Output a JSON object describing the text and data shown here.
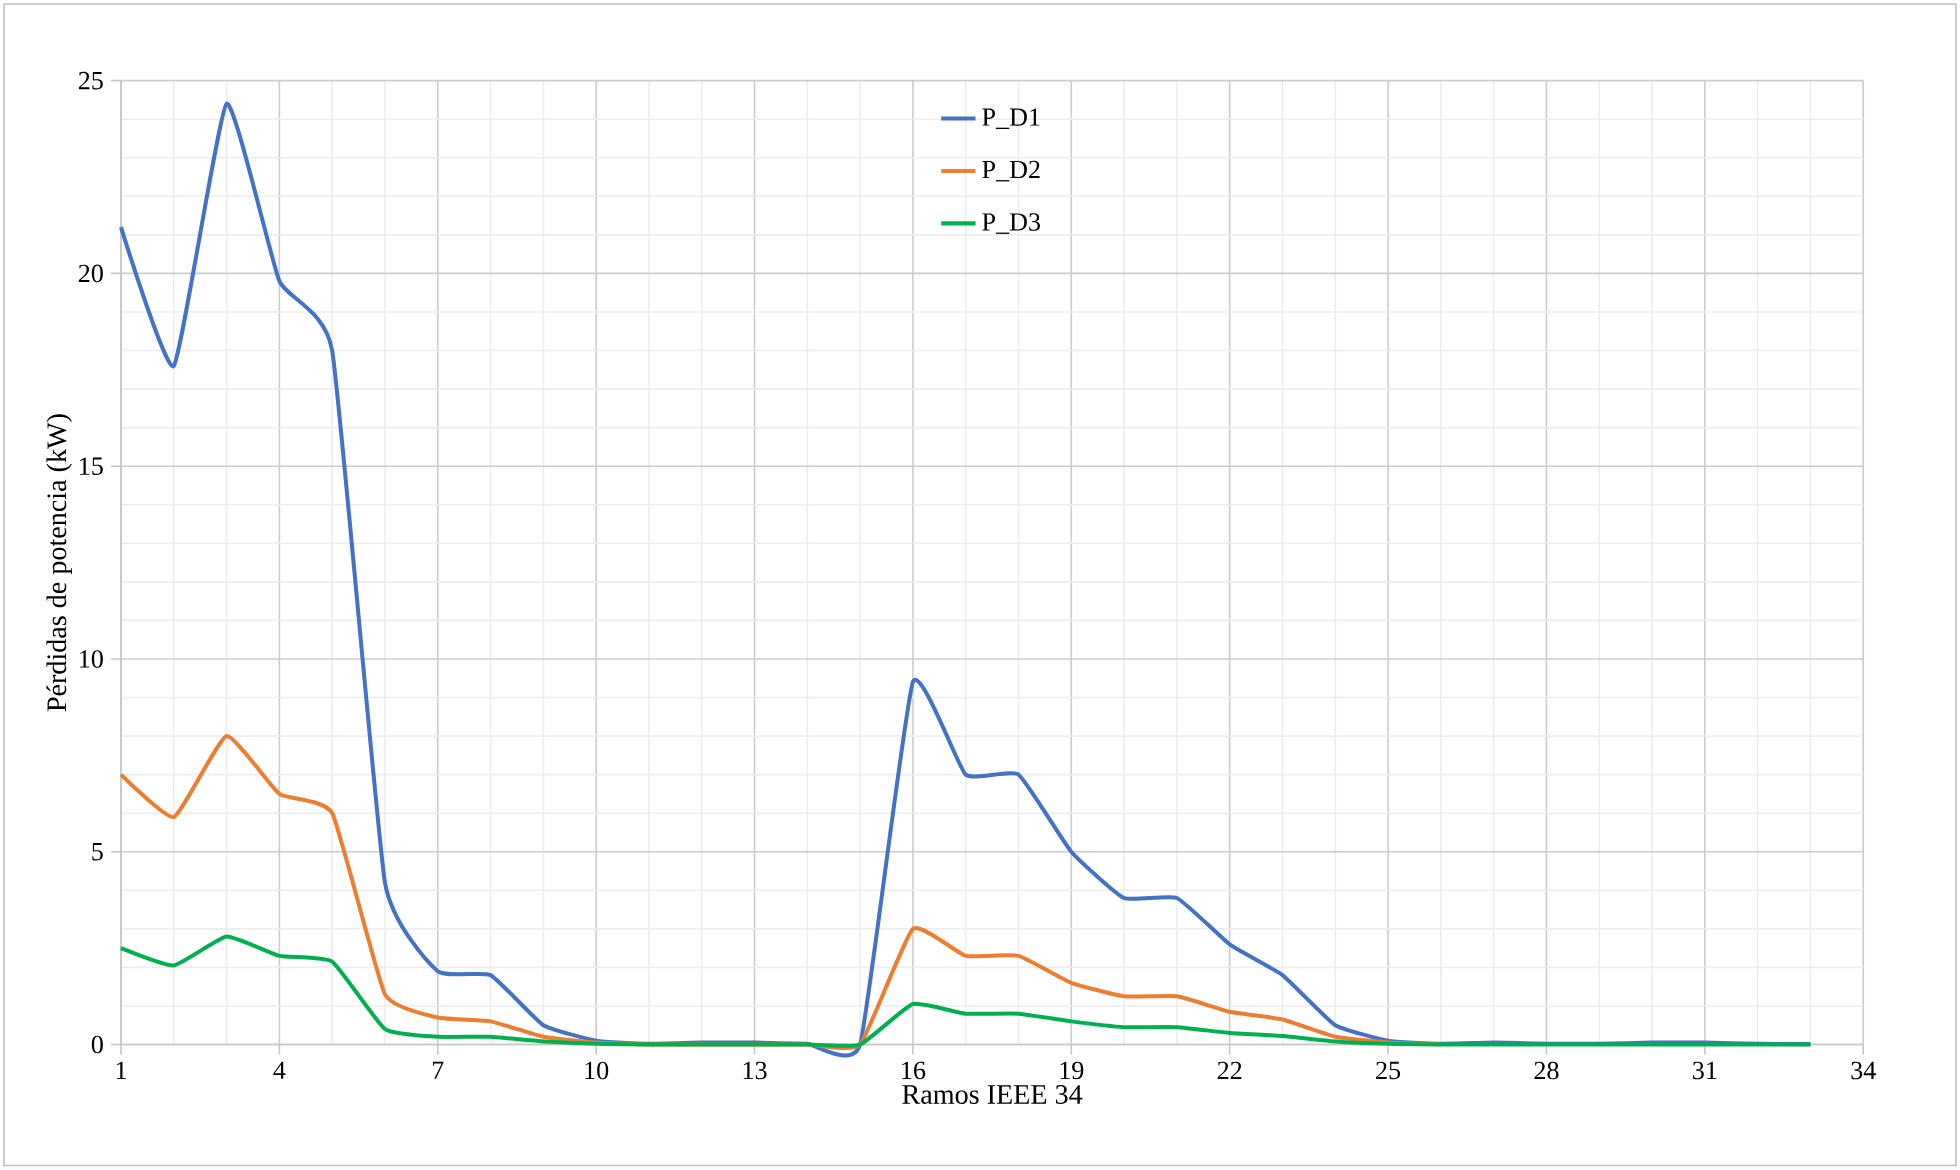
{
  "chart_data": {
    "type": "line",
    "xlabel": "Ramos IEEE 34",
    "ylabel": "Pérdidas de potencia (kW)",
    "x": [
      1,
      2,
      3,
      4,
      5,
      6,
      7,
      8,
      9,
      10,
      11,
      12,
      13,
      14,
      15,
      16,
      17,
      18,
      19,
      20,
      21,
      22,
      23,
      24,
      25,
      26,
      27,
      28,
      29,
      30,
      31,
      32,
      33
    ],
    "series": [
      {
        "name": "P_D1",
        "color": "#4472c4",
        "values": [
          21.2,
          17.6,
          24.4,
          19.8,
          18.0,
          4.2,
          1.9,
          1.8,
          0.5,
          0.1,
          0.02,
          0.05,
          0.05,
          0.02,
          0,
          9.4,
          7.0,
          7.0,
          5.0,
          3.8,
          3.8,
          2.6,
          1.8,
          0.5,
          0.1,
          0.02,
          0.05,
          0.02,
          0.02,
          0.05,
          0.05,
          0.02,
          0.01
        ]
      },
      {
        "name": "P_D2",
        "color": "#ed7d31",
        "values": [
          7.0,
          5.9,
          8.0,
          6.5,
          6.0,
          1.3,
          0.7,
          0.6,
          0.2,
          0.05,
          0,
          0,
          0,
          0,
          0,
          3.0,
          2.3,
          2.3,
          1.6,
          1.25,
          1.25,
          0.85,
          0.65,
          0.2,
          0.05,
          0,
          null,
          null,
          null,
          null,
          null,
          null,
          null
        ]
      },
      {
        "name": "P_D3",
        "color": "#00b050",
        "values": [
          2.5,
          2.05,
          2.8,
          2.3,
          2.15,
          0.4,
          0.2,
          0.2,
          0.08,
          0.02,
          0,
          0,
          0,
          0,
          0,
          1.05,
          0.8,
          0.8,
          0.6,
          0.45,
          0.45,
          0.3,
          0.22,
          0.08,
          0.02,
          0,
          0,
          0,
          0,
          0,
          0,
          0,
          0
        ]
      }
    ],
    "xlim": [
      1,
      34
    ],
    "xticks": [
      1,
      4,
      7,
      10,
      13,
      16,
      19,
      22,
      25,
      28,
      31,
      34
    ],
    "ylim": [
      0,
      25
    ],
    "yticks": [
      0,
      5,
      10,
      15,
      20,
      25
    ],
    "grid": true,
    "legend": "top",
    "marker": "none",
    "line_style": "solid"
  }
}
